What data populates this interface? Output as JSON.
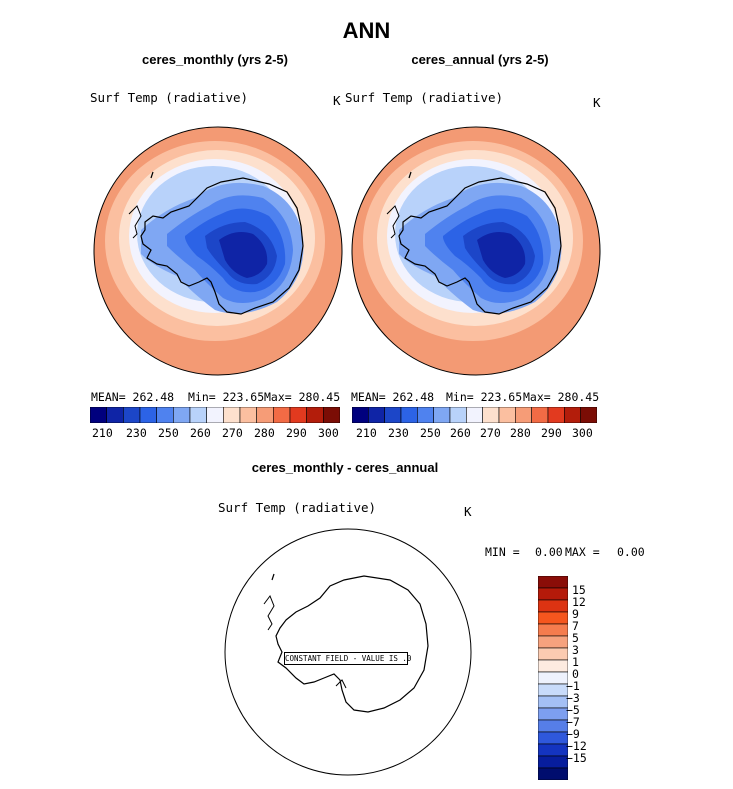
{
  "page_title": "ANN",
  "panels": [
    {
      "title": "ceres_monthly (yrs 2-5)",
      "variable": "Surf Temp (radiative)",
      "units": "K",
      "mean_label": "MEAN= 262.48",
      "min_label": "Min= 223.65",
      "max_label": "Max= 280.45"
    },
    {
      "title": "ceres_annual (yrs 2-5)",
      "variable": "Surf Temp (radiative)",
      "units": "K",
      "mean_label": "MEAN= 262.48",
      "min_label": "Min= 223.65",
      "max_label": "Max= 280.45"
    }
  ],
  "diff_panel": {
    "title": "ceres_monthly - ceres_annual",
    "variable": "Surf Temp (radiative)",
    "units": "K",
    "min_label": "MIN =",
    "min_value": "0.00",
    "max_label": "MAX =",
    "max_value": "0.00",
    "constant_note": "CONSTANT FIELD - VALUE IS .0"
  },
  "colorbar_main": {
    "colors": [
      "#00007e",
      "#0f24a6",
      "#1c46c8",
      "#2c63e6",
      "#4f82ef",
      "#7fa7f3",
      "#b8d2fa",
      "#f2f3fe",
      "#fde0cd",
      "#fbbfa0",
      "#f69c77",
      "#f26b45",
      "#e23a1f",
      "#b31d0b",
      "#7b0d05"
    ],
    "tick_labels": [
      "210",
      "230",
      "250",
      "260",
      "270",
      "280",
      "290",
      "300"
    ]
  },
  "colorbar_diff": {
    "colors": [
      "#8a0d08",
      "#b51a0a",
      "#dc3312",
      "#f5561e",
      "#f57c4e",
      "#f6a27e",
      "#fbcbb1",
      "#fdebe0",
      "#eef2fd",
      "#c8dbfa",
      "#a4c0f5",
      "#7d9ff0",
      "#567ee8",
      "#2f58dc",
      "#1434c0",
      "#071d9d",
      "#000d6e"
    ],
    "tick_labels": [
      "15",
      "12",
      "9",
      "7",
      "5",
      "3",
      "1",
      "0",
      "−1",
      "−3",
      "−5",
      "−7",
      "−9",
      "−12",
      "−15"
    ]
  }
}
